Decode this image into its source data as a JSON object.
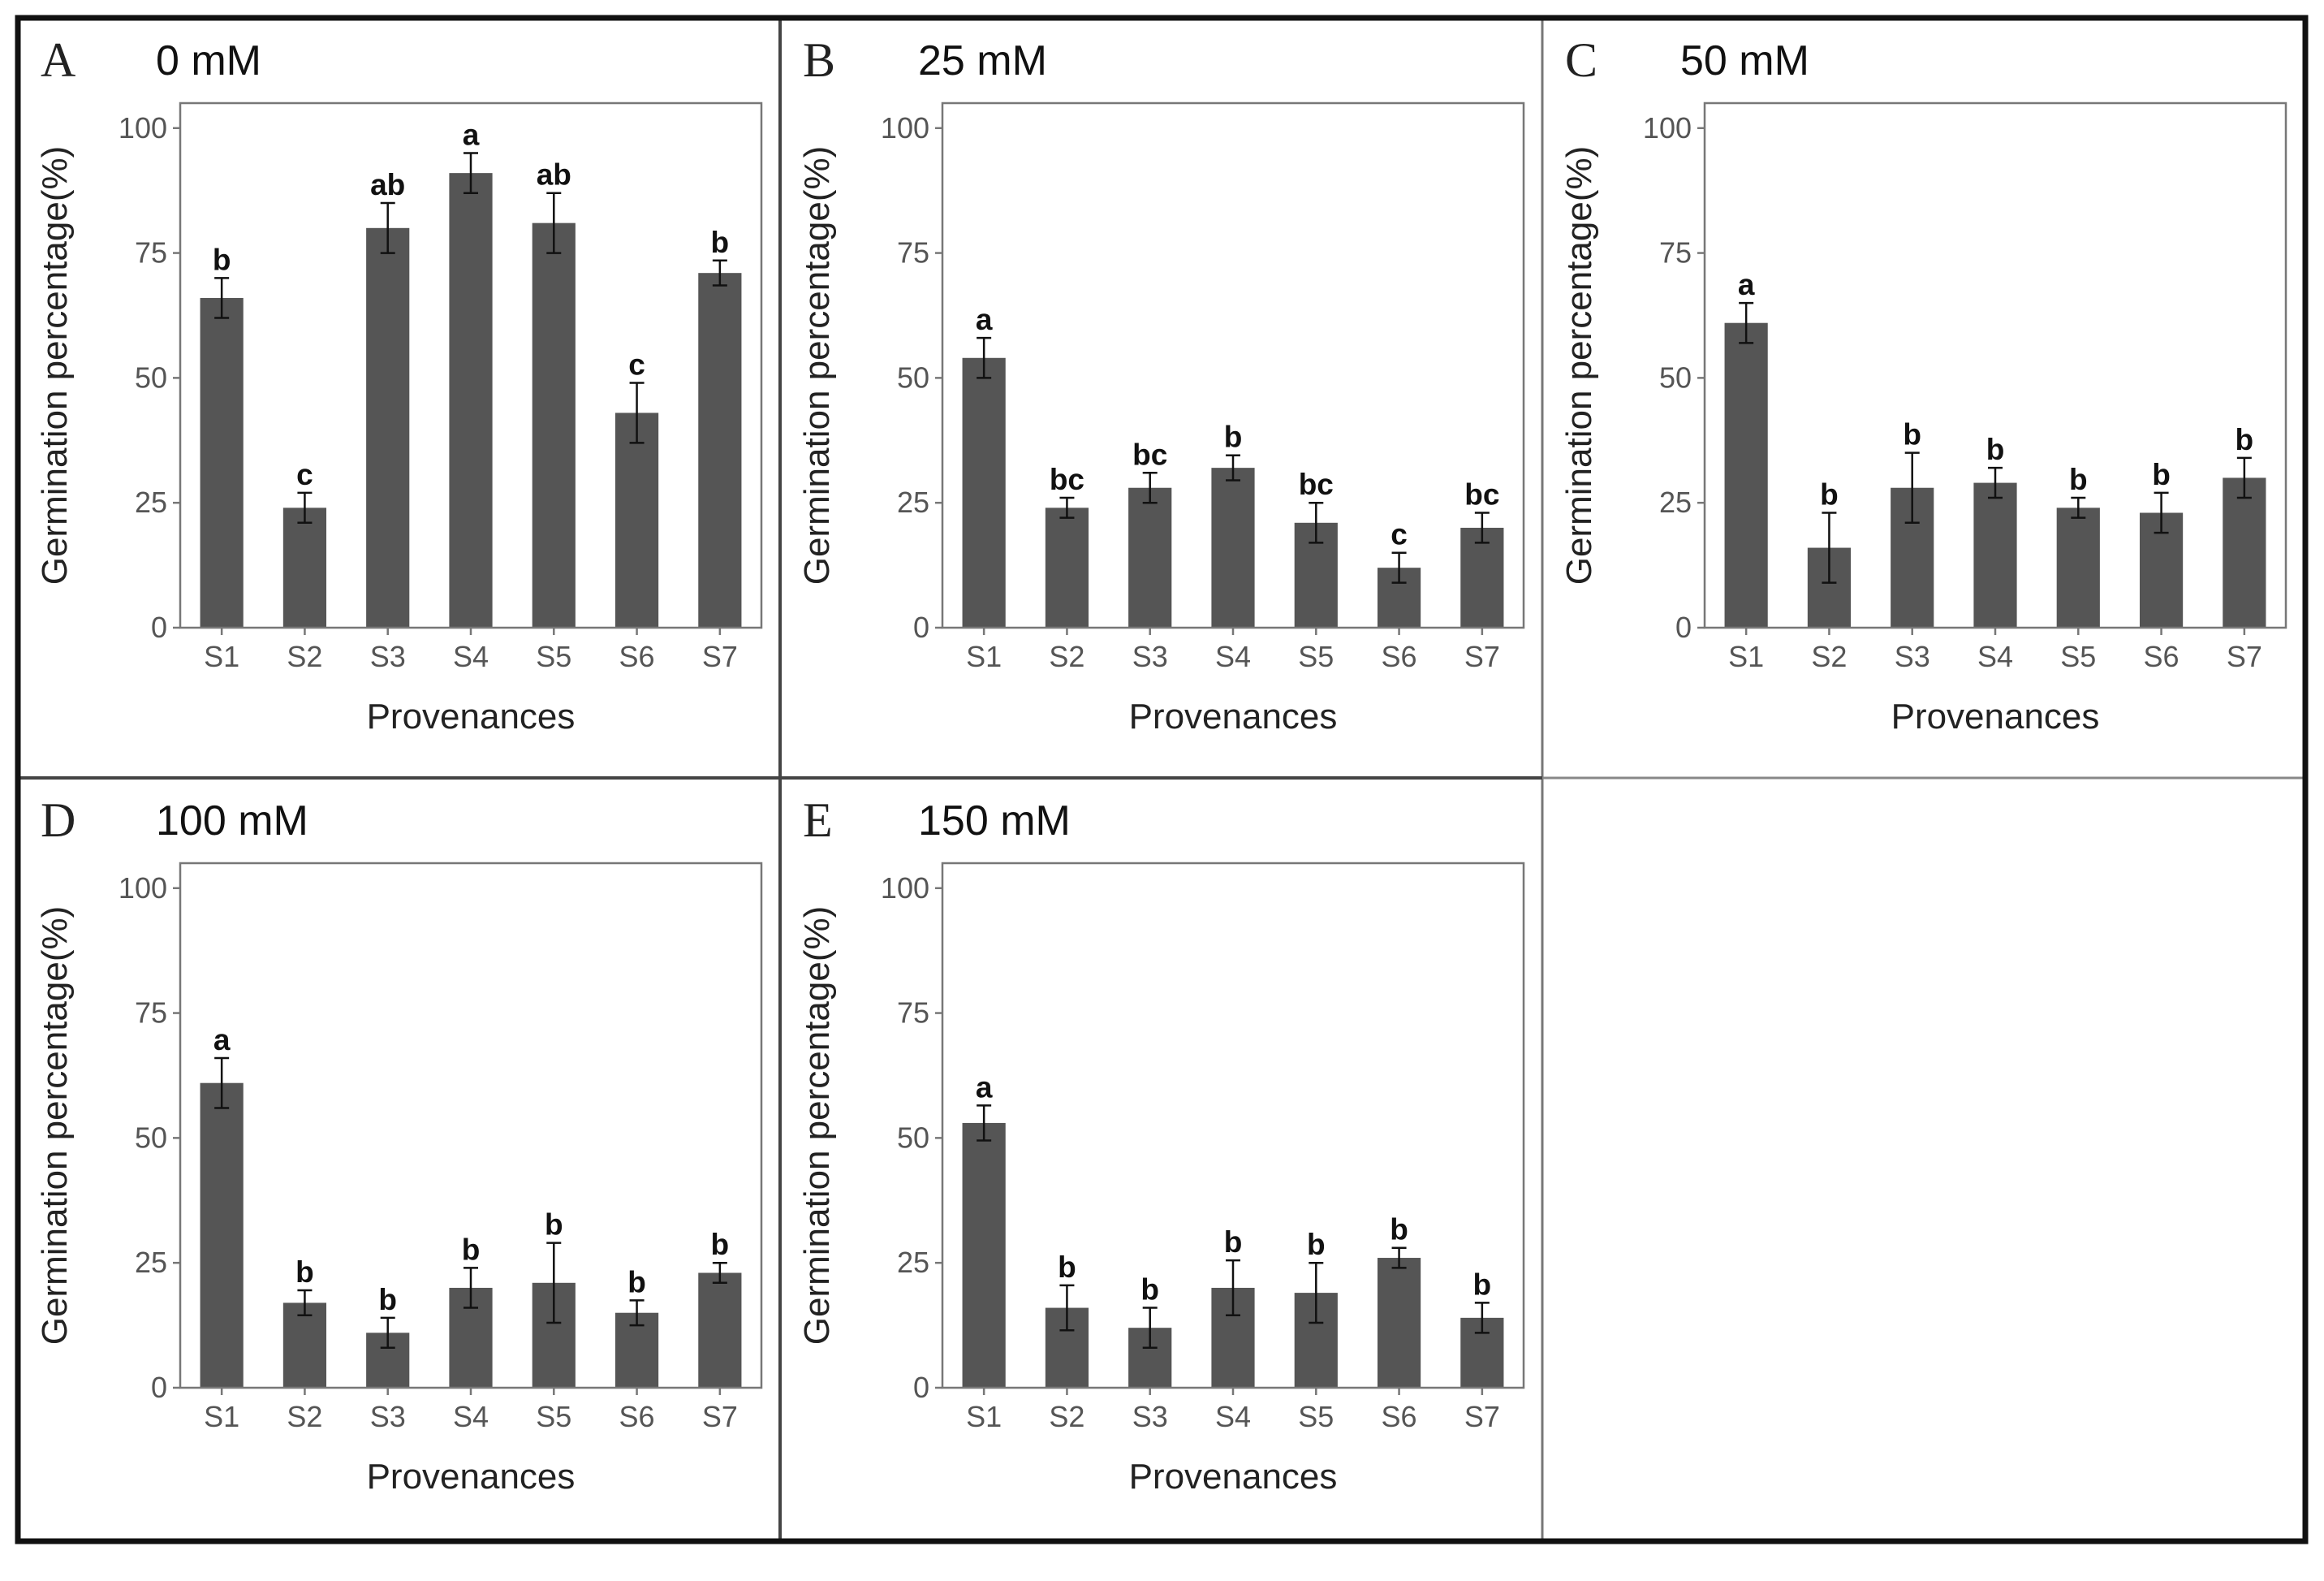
{
  "chart_data": [
    {
      "type": "bar",
      "panel": "A",
      "title": "0 mM",
      "xlabel": "Provenances",
      "ylabel": "Germination percentage(%)",
      "ylim": [
        0,
        105
      ],
      "yticks": [
        0,
        25,
        50,
        75,
        100
      ],
      "categories": [
        "S1",
        "S2",
        "S3",
        "S4",
        "S5",
        "S6",
        "S7"
      ],
      "values": [
        66,
        24,
        80,
        91,
        81,
        43,
        71
      ],
      "errors": [
        4,
        3,
        5,
        4,
        6,
        6,
        2.5
      ],
      "letters": [
        "b",
        "c",
        "ab",
        "a",
        "ab",
        "c",
        "b"
      ],
      "bar_color": "#555555"
    },
    {
      "type": "bar",
      "panel": "B",
      "title": "25 mM",
      "xlabel": "Provenances",
      "ylabel": "Germination percentage(%)",
      "ylim": [
        0,
        105
      ],
      "yticks": [
        0,
        25,
        50,
        75,
        100
      ],
      "categories": [
        "S1",
        "S2",
        "S3",
        "S4",
        "S5",
        "S6",
        "S7"
      ],
      "values": [
        54,
        24,
        28,
        32,
        21,
        12,
        20
      ],
      "errors": [
        4,
        2,
        3,
        2.5,
        4,
        3,
        3
      ],
      "letters": [
        "a",
        "bc",
        "bc",
        "b",
        "bc",
        "c",
        "bc"
      ],
      "bar_color": "#555555"
    },
    {
      "type": "bar",
      "panel": "C",
      "title": "50 mM",
      "xlabel": "Provenances",
      "ylabel": "Germination percentage(%)",
      "ylim": [
        0,
        105
      ],
      "yticks": [
        0,
        25,
        50,
        75,
        100
      ],
      "categories": [
        "S1",
        "S2",
        "S3",
        "S4",
        "S5",
        "S6",
        "S7"
      ],
      "values": [
        61,
        16,
        28,
        29,
        24,
        23,
        30
      ],
      "errors": [
        4,
        7,
        7,
        3,
        2,
        4,
        4
      ],
      "letters": [
        "a",
        "b",
        "b",
        "b",
        "b",
        "b",
        "b"
      ],
      "bar_color": "#555555"
    },
    {
      "type": "bar",
      "panel": "D",
      "title": "100 mM",
      "xlabel": "Provenances",
      "ylabel": "Germination percentage(%)",
      "ylim": [
        0,
        105
      ],
      "yticks": [
        0,
        25,
        50,
        75,
        100
      ],
      "categories": [
        "S1",
        "S2",
        "S3",
        "S4",
        "S5",
        "S6",
        "S7"
      ],
      "values": [
        61,
        17,
        11,
        20,
        21,
        15,
        23
      ],
      "errors": [
        5,
        2.5,
        3,
        4,
        8,
        2.5,
        2
      ],
      "letters": [
        "a",
        "b",
        "b",
        "b",
        "b",
        "b",
        "b"
      ],
      "bar_color": "#555555"
    },
    {
      "type": "bar",
      "panel": "E",
      "title": "150 mM",
      "xlabel": "Provenances",
      "ylabel": "Germination percentage(%)",
      "ylim": [
        0,
        105
      ],
      "yticks": [
        0,
        25,
        50,
        75,
        100
      ],
      "categories": [
        "S1",
        "S2",
        "S3",
        "S4",
        "S5",
        "S6",
        "S7"
      ],
      "values": [
        53,
        16,
        12,
        20,
        19,
        26,
        14
      ],
      "errors": [
        3.5,
        4.5,
        4,
        5.5,
        6,
        2,
        3
      ],
      "letters": [
        "a",
        "b",
        "b",
        "b",
        "b",
        "b",
        "b"
      ],
      "bar_color": "#555555"
    }
  ]
}
